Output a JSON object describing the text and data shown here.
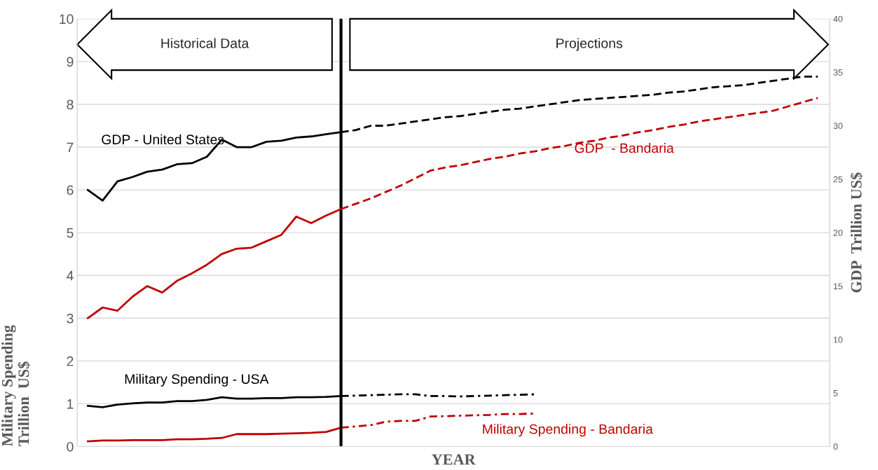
{
  "chart_data": {
    "type": "line",
    "xlabel": "YEAR",
    "ylabel": "Military Spending\nTrillion  US$",
    "y2label": "GDP  Trillion US$",
    "categories": [
      null,
      null,
      null,
      null,
      null,
      null,
      null,
      null,
      null,
      null,
      null,
      null,
      null,
      null,
      null,
      null,
      null,
      null,
      null,
      null,
      null,
      null,
      null,
      null,
      null,
      null,
      null,
      null,
      null,
      null,
      null,
      null,
      null,
      null,
      null,
      null,
      null,
      null,
      null,
      null,
      null,
      null,
      null,
      null,
      null,
      null,
      null,
      null,
      null,
      null
    ],
    "ylim": [
      0,
      10
    ],
    "yticks": [
      0,
      1,
      2,
      3,
      4,
      5,
      6,
      7,
      8,
      9,
      10
    ],
    "y2lim": [
      0,
      40
    ],
    "y2ticks": [
      0,
      5,
      10,
      15,
      20,
      25,
      30,
      35,
      40
    ],
    "grid": "y",
    "legend": false,
    "marker": "none",
    "series": [
      {
        "color": "#000000",
        "axis": "y2",
        "line_style": "solid",
        "values": [
          24,
          23,
          24.8,
          25.2,
          25.7,
          25.9,
          26.4,
          26.5,
          27.1,
          28.7,
          28,
          28,
          28.5,
          28.6,
          28.9,
          29,
          29.2,
          29.4,
          null,
          null,
          null,
          null,
          null,
          null,
          null,
          null,
          null,
          null,
          null,
          null,
          null,
          null,
          null,
          null,
          null,
          null,
          null,
          null,
          null,
          null,
          null,
          null,
          null,
          null,
          null,
          null,
          null,
          null,
          null,
          null
        ]
      },
      {
        "color": "#000000",
        "axis": "y2",
        "line_style": "dashed",
        "values": [
          null,
          null,
          null,
          null,
          null,
          null,
          null,
          null,
          null,
          null,
          null,
          null,
          null,
          null,
          null,
          null,
          null,
          29.4,
          29.6,
          30,
          30,
          30.2,
          30.4,
          30.6,
          30.8,
          30.9,
          31.1,
          31.3,
          31.5,
          31.6,
          31.8,
          32,
          32.2,
          32.4,
          32.5,
          32.6,
          32.7,
          32.8,
          32.9,
          33.1,
          33.2,
          33.4,
          33.6,
          33.7,
          33.8,
          34,
          34.2,
          34.4,
          34.6,
          34.6
        ]
      },
      {
        "color": "#c00000",
        "axis": "y2",
        "line_style": "solid",
        "values": [
          12,
          13,
          12.7,
          14,
          15,
          14.4,
          15.5,
          16.2,
          17,
          18,
          18.5,
          18.6,
          19.2,
          19.8,
          21.5,
          20.9,
          21.6,
          22.2,
          null,
          null,
          null,
          null,
          null,
          null,
          null,
          null,
          null,
          null,
          null,
          null,
          null,
          null,
          null,
          null,
          null,
          null,
          null,
          null,
          null,
          null,
          null,
          null,
          null,
          null,
          null,
          null,
          null,
          null,
          null,
          null
        ]
      },
      {
        "color": "#c00000",
        "axis": "y2",
        "line_style": "dashed",
        "values": [
          null,
          null,
          null,
          null,
          null,
          null,
          null,
          null,
          null,
          null,
          null,
          null,
          null,
          null,
          null,
          null,
          null,
          22.2,
          22.7,
          23.2,
          23.8,
          24.4,
          25.1,
          25.8,
          26.1,
          26.3,
          26.6,
          26.9,
          27.1,
          27.4,
          27.6,
          27.9,
          28.1,
          28.4,
          28.6,
          28.9,
          29.1,
          29.4,
          29.6,
          29.9,
          30.1,
          30.4,
          30.6,
          30.8,
          31,
          31.2,
          31.4,
          31.8,
          32.2,
          32.6
        ]
      },
      {
        "color": "#000000",
        "line_style": "solid",
        "values": [
          0.95,
          0.92,
          0.98,
          1.01,
          1.03,
          1.03,
          1.06,
          1.06,
          1.09,
          1.15,
          1.12,
          1.12,
          1.13,
          1.13,
          1.15,
          1.15,
          1.16,
          1.18,
          null,
          null,
          null,
          null,
          null,
          null,
          null,
          null,
          null,
          null,
          null,
          null,
          null,
          null,
          null,
          null,
          null,
          null,
          null,
          null,
          null,
          null,
          null,
          null,
          null,
          null,
          null,
          null,
          null,
          null,
          null,
          null
        ]
      },
      {
        "color": "#000000",
        "line_style": "dashdot",
        "values": [
          null,
          null,
          null,
          null,
          null,
          null,
          null,
          null,
          null,
          null,
          null,
          null,
          null,
          null,
          null,
          null,
          null,
          1.18,
          1.19,
          1.2,
          1.21,
          1.22,
          1.22,
          1.18,
          1.18,
          1.17,
          1.18,
          1.19,
          1.2,
          1.21,
          1.22,
          null,
          null,
          null,
          null,
          null,
          null,
          null,
          null,
          null,
          null,
          null,
          null,
          null,
          null,
          null,
          null,
          null,
          null,
          null
        ]
      },
      {
        "color": "#c00000",
        "line_style": "solid",
        "values": [
          0.12,
          0.14,
          0.14,
          0.15,
          0.15,
          0.15,
          0.17,
          0.17,
          0.18,
          0.2,
          0.29,
          0.29,
          0.29,
          0.3,
          0.31,
          0.32,
          0.34,
          0.44,
          null,
          null,
          null,
          null,
          null,
          null,
          null,
          null,
          null,
          null,
          null,
          null,
          null,
          null,
          null,
          null,
          null,
          null,
          null,
          null,
          null,
          null,
          null,
          null,
          null,
          null,
          null,
          null,
          null,
          null,
          null,
          null
        ]
      },
      {
        "color": "#c00000",
        "line_style": "dashdot",
        "values": [
          null,
          null,
          null,
          null,
          null,
          null,
          null,
          null,
          null,
          null,
          null,
          null,
          null,
          null,
          null,
          null,
          null,
          0.44,
          0.47,
          0.5,
          0.58,
          0.6,
          0.6,
          0.7,
          0.71,
          0.72,
          0.73,
          0.74,
          0.76,
          0.76,
          0.77,
          null,
          null,
          null,
          null,
          null,
          null,
          null,
          null,
          null,
          null,
          null,
          null,
          null,
          null,
          null,
          null,
          null,
          null,
          null
        ]
      }
    ],
    "annotations": [
      "Historical Data",
      "Projections",
      "GDP - United States",
      "GDP  - Bandaria",
      "Military Spending - USA",
      "Military Spending - Bandaria"
    ]
  }
}
